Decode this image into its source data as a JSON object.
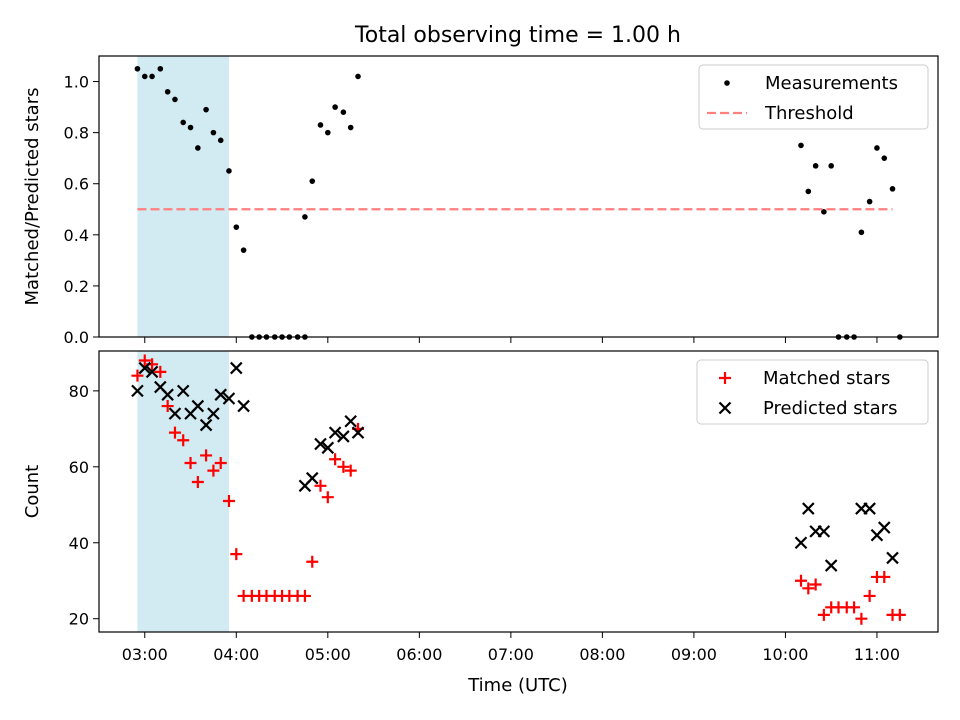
{
  "figure": {
    "title": "Total observing time = 1.00 h",
    "xlabel": "Time (UTC)"
  },
  "chart_data": [
    {
      "type": "scatter",
      "ylabel": "Matched/Predicted stars",
      "xlim": [
        2.5,
        11.667
      ],
      "ylim": [
        0,
        1.1
      ],
      "yticks": [
        0.0,
        0.2,
        0.4,
        0.6,
        0.8,
        1.0
      ],
      "shaded_region": [
        2.92,
        3.92
      ],
      "legend_position": "upper right",
      "series": [
        {
          "name": "Measurements",
          "marker": "dot",
          "color": "#000000",
          "points": [
            [
              2.92,
              1.05
            ],
            [
              3.0,
              1.02
            ],
            [
              3.08,
              1.02
            ],
            [
              3.17,
              1.05
            ],
            [
              3.25,
              0.96
            ],
            [
              3.33,
              0.93
            ],
            [
              3.42,
              0.84
            ],
            [
              3.5,
              0.82
            ],
            [
              3.58,
              0.74
            ],
            [
              3.67,
              0.89
            ],
            [
              3.75,
              0.8
            ],
            [
              3.83,
              0.77
            ],
            [
              3.92,
              0.65
            ],
            [
              4.0,
              0.43
            ],
            [
              4.08,
              0.34
            ],
            [
              4.17,
              0.0
            ],
            [
              4.25,
              0.0
            ],
            [
              4.33,
              0.0
            ],
            [
              4.42,
              0.0
            ],
            [
              4.5,
              0.0
            ],
            [
              4.58,
              0.0
            ],
            [
              4.67,
              0.0
            ],
            [
              4.75,
              0.0
            ],
            [
              4.75,
              0.47
            ],
            [
              4.83,
              0.61
            ],
            [
              4.92,
              0.83
            ],
            [
              5.0,
              0.8
            ],
            [
              5.08,
              0.9
            ],
            [
              5.17,
              0.88
            ],
            [
              5.25,
              0.82
            ],
            [
              5.33,
              1.02
            ],
            [
              10.17,
              0.75
            ],
            [
              10.25,
              0.57
            ],
            [
              10.33,
              0.67
            ],
            [
              10.42,
              0.49
            ],
            [
              10.5,
              0.67
            ],
            [
              10.58,
              0.0
            ],
            [
              10.67,
              0.0
            ],
            [
              10.75,
              0.0
            ],
            [
              10.83,
              0.41
            ],
            [
              10.92,
              0.53
            ],
            [
              11.0,
              0.74
            ],
            [
              11.08,
              0.7
            ],
            [
              11.17,
              0.58
            ],
            [
              11.25,
              0.0
            ]
          ]
        },
        {
          "name": "Threshold",
          "type": "line",
          "style": "dashed",
          "color": "#ff7f7f",
          "x": [
            2.92,
            11.17
          ],
          "y": [
            0.5,
            0.5
          ]
        }
      ]
    },
    {
      "type": "scatter",
      "ylabel": "Count",
      "xlim": [
        2.5,
        11.667
      ],
      "ylim": [
        16.5,
        90.5
      ],
      "yticks": [
        20,
        40,
        60,
        80
      ],
      "xticks": [
        "03:00",
        "04:00",
        "05:00",
        "06:00",
        "07:00",
        "08:00",
        "09:00",
        "10:00",
        "11:00"
      ],
      "xtick_values": [
        3,
        4,
        5,
        6,
        7,
        8,
        9,
        10,
        11
      ],
      "shaded_region": [
        2.92,
        3.92
      ],
      "legend_position": "upper right",
      "series": [
        {
          "name": "Matched stars",
          "marker": "plus",
          "color": "#ff0000",
          "points": [
            [
              2.92,
              84
            ],
            [
              3.0,
              88
            ],
            [
              3.08,
              87
            ],
            [
              3.17,
              85
            ],
            [
              3.25,
              76
            ],
            [
              3.33,
              69
            ],
            [
              3.42,
              67
            ],
            [
              3.5,
              61
            ],
            [
              3.58,
              56
            ],
            [
              3.67,
              63
            ],
            [
              3.75,
              59
            ],
            [
              3.83,
              61
            ],
            [
              3.92,
              51
            ],
            [
              4.0,
              37
            ],
            [
              4.08,
              26
            ],
            [
              4.17,
              26
            ],
            [
              4.25,
              26
            ],
            [
              4.33,
              26
            ],
            [
              4.42,
              26
            ],
            [
              4.5,
              26
            ],
            [
              4.58,
              26
            ],
            [
              4.67,
              26
            ],
            [
              4.75,
              26
            ],
            [
              4.83,
              35
            ],
            [
              4.92,
              55
            ],
            [
              5.0,
              52
            ],
            [
              5.08,
              62
            ],
            [
              5.17,
              60
            ],
            [
              5.25,
              59
            ],
            [
              5.33,
              70
            ],
            [
              10.17,
              30
            ],
            [
              10.25,
              28
            ],
            [
              10.33,
              29
            ],
            [
              10.42,
              21
            ],
            [
              10.5,
              23
            ],
            [
              10.58,
              23
            ],
            [
              10.67,
              23
            ],
            [
              10.75,
              23
            ],
            [
              10.83,
              20
            ],
            [
              10.92,
              26
            ],
            [
              11.0,
              31
            ],
            [
              11.08,
              31
            ],
            [
              11.17,
              21
            ],
            [
              11.25,
              21
            ]
          ]
        },
        {
          "name": "Predicted stars",
          "marker": "x",
          "color": "#000000",
          "points": [
            [
              2.92,
              80
            ],
            [
              3.0,
              86
            ],
            [
              3.08,
              85
            ],
            [
              3.17,
              81
            ],
            [
              3.25,
              79
            ],
            [
              3.33,
              74
            ],
            [
              3.42,
              80
            ],
            [
              3.5,
              74
            ],
            [
              3.58,
              76
            ],
            [
              3.67,
              71
            ],
            [
              3.75,
              74
            ],
            [
              3.83,
              79
            ],
            [
              3.92,
              78
            ],
            [
              4.0,
              86
            ],
            [
              4.08,
              76
            ],
            [
              4.75,
              55
            ],
            [
              4.83,
              57
            ],
            [
              4.92,
              66
            ],
            [
              5.0,
              65
            ],
            [
              5.08,
              69
            ],
            [
              5.17,
              68
            ],
            [
              5.25,
              72
            ],
            [
              5.33,
              69
            ],
            [
              10.17,
              40
            ],
            [
              10.25,
              49
            ],
            [
              10.33,
              43
            ],
            [
              10.42,
              43
            ],
            [
              10.5,
              34
            ],
            [
              10.83,
              49
            ],
            [
              10.92,
              49
            ],
            [
              11.0,
              42
            ],
            [
              11.08,
              44
            ],
            [
              11.17,
              36
            ]
          ]
        }
      ]
    }
  ]
}
